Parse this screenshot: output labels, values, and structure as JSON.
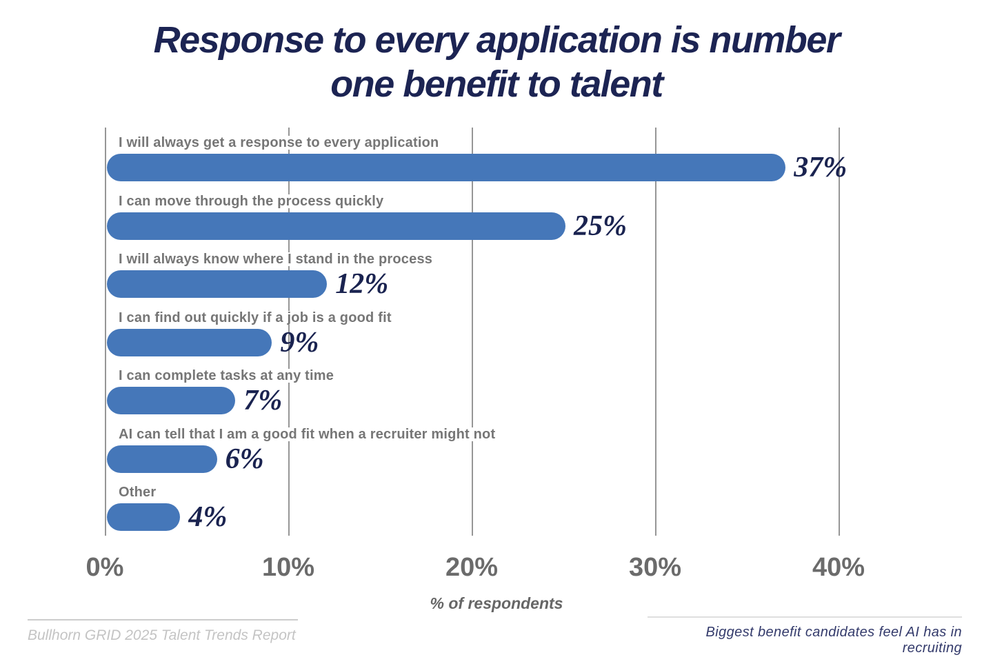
{
  "title": {
    "text": "Response to every application is number one benefit to talent",
    "lines": [
      "Response to every application is number",
      "one benefit to talent"
    ]
  },
  "chart_data": {
    "type": "bar",
    "orientation": "horizontal",
    "title": "Response to every application is number one benefit to talent",
    "categories": [
      "I will always get a response to every application",
      "I can move through the process quickly",
      "I will always know where I stand in the process",
      "I can find out quickly if a job is a good fit",
      "I can complete tasks at any time",
      "AI can tell that I am a good fit when a recruiter might not",
      "Other"
    ],
    "values": [
      37,
      25,
      12,
      9,
      7,
      6,
      4
    ],
    "value_labels": [
      "37%",
      "25%",
      "12%",
      "9%",
      "7%",
      "6%",
      "4%"
    ],
    "xlabel": "% of respondents",
    "x_ticks": [
      "0%",
      "10%",
      "20%",
      "30%",
      "40%"
    ],
    "x_tick_values": [
      0,
      10,
      20,
      30,
      40
    ],
    "xlim": [
      0,
      45
    ],
    "grid": "vertical-gridlines",
    "legend": "none",
    "bar_color": "#4577b9",
    "value_label_color": "#1a2350",
    "category_label_color": "#767676",
    "tick_label_color": "#6b6b6b",
    "gridline_color": "#969696",
    "title_color": "#1c2453"
  },
  "footer": {
    "source": "Bullhorn GRID 2025 Talent Trends Report",
    "caption": "Biggest benefit candidates feel AI has in recruiting"
  }
}
